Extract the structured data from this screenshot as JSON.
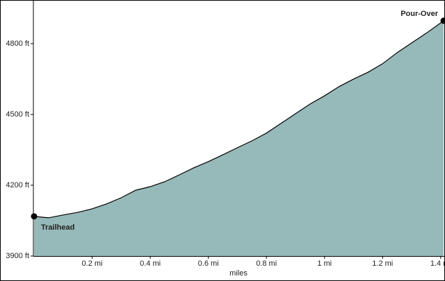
{
  "chart_data": {
    "type": "area",
    "x_label": "miles",
    "x": [
      0,
      0.05,
      0.1,
      0.15,
      0.2,
      0.25,
      0.3,
      0.35,
      0.4,
      0.45,
      0.5,
      0.55,
      0.6,
      0.65,
      0.7,
      0.75,
      0.8,
      0.85,
      0.9,
      0.95,
      1.0,
      1.05,
      1.1,
      1.15,
      1.2,
      1.25,
      1.3,
      1.35,
      1.41
    ],
    "series": [
      {
        "color": "#96b9b9",
        "values": [
          4068,
          4062,
          4074,
          4085,
          4100,
          4121,
          4147,
          4179,
          4194,
          4215,
          4244,
          4274,
          4300,
          4329,
          4359,
          4388,
          4421,
          4462,
          4503,
          4544,
          4579,
          4618,
          4650,
          4679,
          4715,
          4762,
          4803,
          4844,
          4897
        ]
      }
    ],
    "annotations": [
      {
        "text": "Trailhead",
        "x": 0,
        "y": 4068
      },
      {
        "text": "Pour-Over",
        "x": 1.41,
        "y": 4897
      }
    ],
    "xlim": [
      0,
      1.41
    ],
    "ylim": [
      3900,
      4982
    ],
    "xticks": [
      {
        "value": 0.2,
        "label": "0.2 mi"
      },
      {
        "value": 0.4,
        "label": "0.4 mi"
      },
      {
        "value": 0.6,
        "label": "0.6 mi"
      },
      {
        "value": 0.8,
        "label": "0.8 mi"
      },
      {
        "value": 1,
        "label": "1 mi"
      },
      {
        "value": 1.2,
        "label": "1.2 mi"
      },
      {
        "value": 1.4,
        "label": "1.4 mi"
      }
    ],
    "yticks": [
      {
        "value": 3900,
        "label": "3900 ft"
      },
      {
        "value": 4200,
        "label": "4200 ft"
      },
      {
        "value": 4500,
        "label": "4500 ft"
      },
      {
        "value": 4800,
        "label": "4800 ft"
      }
    ]
  }
}
